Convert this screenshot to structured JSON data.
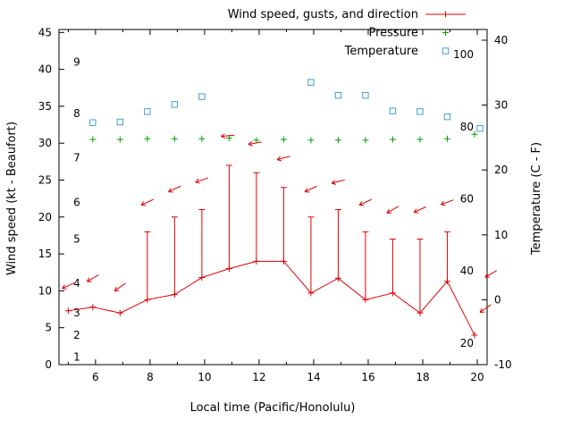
{
  "chart_data": {
    "type": "line",
    "title": "",
    "xlabel": "Local time (Pacific/Honolulu)",
    "ylabel_left": "Wind speed (kt - Beaufort)",
    "ylabel_right": "Temperature (C - F)",
    "grid": false,
    "legend_position": "top-right-inside",
    "x_range": [
      4.66,
      20.36
    ],
    "x_major_ticks": [
      6,
      8,
      10,
      12,
      14,
      16,
      18,
      20
    ],
    "x_minor_ticks": [
      5,
      7,
      9,
      11,
      13,
      15,
      17,
      19
    ],
    "y_left_range": [
      0,
      45.4
    ],
    "y_left_ticks": [
      0,
      5,
      10,
      15,
      20,
      25,
      30,
      35,
      40,
      45
    ],
    "y_right_range": [
      -10,
      41.65
    ],
    "y_right_ticks": [
      -10,
      0,
      10,
      20,
      30,
      40
    ],
    "beaufort_inner_labels": [
      {
        "text": "1",
        "kt": 1
      },
      {
        "text": "2",
        "kt": 4
      },
      {
        "text": "3",
        "kt": 7
      },
      {
        "text": "4",
        "kt": 11
      },
      {
        "text": "5",
        "kt": 17
      },
      {
        "text": "6",
        "kt": 22
      },
      {
        "text": "7",
        "kt": 28
      },
      {
        "text": "8",
        "kt": 34
      },
      {
        "text": "9",
        "kt": 41
      }
    ],
    "fahrenheit_inner_labels": [
      {
        "text": "20",
        "c": -6.67
      },
      {
        "text": "40",
        "c": 4.44
      },
      {
        "text": "60",
        "c": 15.56
      },
      {
        "text": "80",
        "c": 26.67
      },
      {
        "text": "100",
        "c": 37.78
      }
    ],
    "legend": [
      {
        "label": "Wind speed, gusts, and direction",
        "style": "errorline",
        "color": "#e00000"
      },
      {
        "label": "Pressure",
        "style": "plus",
        "color": "#00a000"
      },
      {
        "label": "Temperature",
        "style": "square",
        "color": "#3f9fd0"
      }
    ],
    "series": {
      "wind": {
        "name": "Wind speed, gusts, and direction",
        "color": "#e00000",
        "points": [
          {
            "h": 5.0,
            "speed": 7.3,
            "gust": null
          },
          {
            "h": 5.9,
            "speed": 7.8,
            "gust": null
          },
          {
            "h": 6.9,
            "speed": 7.0,
            "gust": null
          },
          {
            "h": 7.9,
            "speed": 8.8,
            "gust": 18
          },
          {
            "h": 8.9,
            "speed": 9.5,
            "gust": 20
          },
          {
            "h": 9.9,
            "speed": 11.8,
            "gust": 21
          },
          {
            "h": 10.9,
            "speed": 13.0,
            "gust": 27
          },
          {
            "h": 11.9,
            "speed": 14.0,
            "gust": 26
          },
          {
            "h": 12.9,
            "speed": 14.0,
            "gust": 24
          },
          {
            "h": 13.9,
            "speed": 9.7,
            "gust": 20
          },
          {
            "h": 14.9,
            "speed": 11.7,
            "gust": 21
          },
          {
            "h": 15.9,
            "speed": 8.8,
            "gust": 18
          },
          {
            "h": 16.9,
            "speed": 9.7,
            "gust": 17
          },
          {
            "h": 17.9,
            "speed": 7.0,
            "gust": 17
          },
          {
            "h": 18.9,
            "speed": 11.3,
            "gust": 18
          },
          {
            "h": 19.9,
            "speed": 4.0,
            "gust": null
          }
        ]
      },
      "wind_direction_arrows": [
        {
          "h": 5.0,
          "y": 10.7,
          "angle": 205
        },
        {
          "h": 5.9,
          "y": 11.7,
          "angle": 210
        },
        {
          "h": 6.9,
          "y": 10.5,
          "angle": 215
        },
        {
          "h": 7.9,
          "y": 22.0,
          "angle": 205
        },
        {
          "h": 8.9,
          "y": 23.8,
          "angle": 205
        },
        {
          "h": 9.9,
          "y": 25.0,
          "angle": 200
        },
        {
          "h": 10.85,
          "y": 31.0,
          "angle": 185
        },
        {
          "h": 11.85,
          "y": 30.0,
          "angle": 190
        },
        {
          "h": 12.9,
          "y": 28.0,
          "angle": 195
        },
        {
          "h": 13.9,
          "y": 23.8,
          "angle": 205
        },
        {
          "h": 14.9,
          "y": 24.8,
          "angle": 195
        },
        {
          "h": 15.9,
          "y": 22.0,
          "angle": 205
        },
        {
          "h": 16.9,
          "y": 21.0,
          "angle": 210
        },
        {
          "h": 17.9,
          "y": 21.0,
          "angle": 205
        },
        {
          "h": 18.9,
          "y": 22.0,
          "angle": 200
        },
        {
          "h": 20.5,
          "y": 12.3,
          "angle": 210
        },
        {
          "h": 20.3,
          "y": 7.6,
          "angle": 215
        }
      ],
      "pressure": {
        "name": "Pressure",
        "color": "#00a000",
        "x": [
          5.9,
          6.9,
          7.9,
          8.9,
          9.9,
          10.9,
          11.9,
          12.9,
          13.9,
          14.9,
          15.9,
          16.9,
          17.9,
          18.9,
          19.9
        ],
        "y": [
          30.5,
          30.5,
          30.6,
          30.6,
          30.6,
          30.7,
          30.4,
          30.5,
          30.4,
          30.4,
          30.4,
          30.5,
          30.5,
          30.6,
          31.2
        ]
      },
      "temperature": {
        "name": "Temperature",
        "color": "#3f9fd0",
        "x": [
          5.9,
          6.9,
          7.9,
          8.9,
          9.9,
          13.9,
          14.9,
          15.9,
          16.9,
          17.9,
          18.9,
          20.1
        ],
        "c": [
          27.3,
          27.4,
          29.0,
          30.1,
          31.3,
          33.5,
          31.5,
          31.5,
          29.1,
          29.0,
          28.2,
          26.4
        ]
      }
    }
  }
}
